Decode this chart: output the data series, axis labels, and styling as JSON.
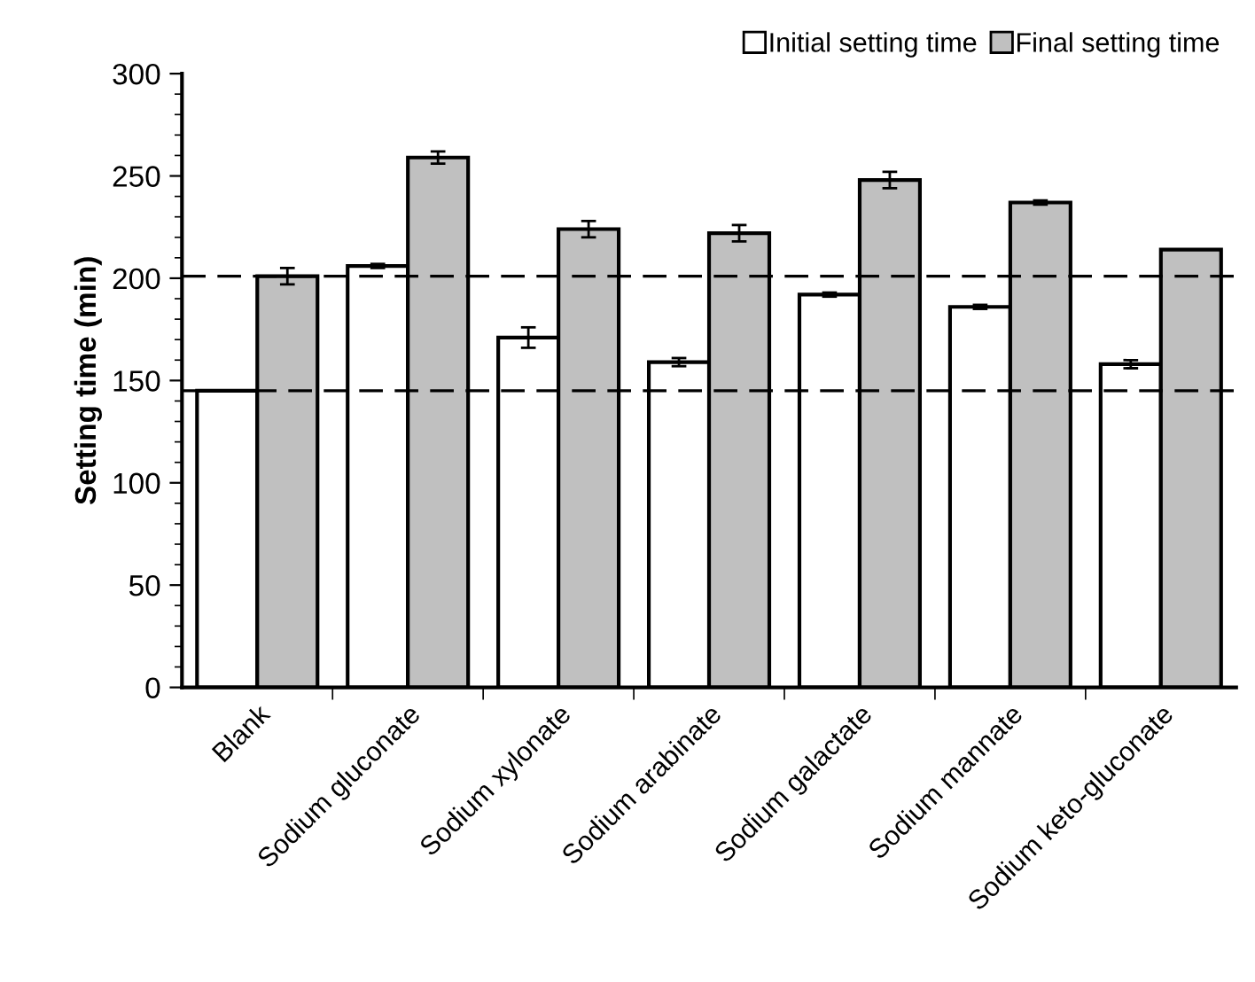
{
  "chart_data": {
    "type": "bar",
    "ylabel": "Setting time (min)",
    "categories": [
      "Blank",
      "Sodium gluconate",
      "Sodium xylonate",
      "Sodium arabinate",
      "Sodium galactate",
      "Sodium mannate",
      "Sodium keto-gluconate"
    ],
    "series": [
      {
        "name": "Initial setting time",
        "color": "#ffffff",
        "values": [
          145,
          206,
          171,
          159,
          192,
          186,
          158
        ],
        "errors": [
          null,
          1,
          5,
          2,
          1,
          1,
          2
        ]
      },
      {
        "name": "Final setting time",
        "color": "#c0c0c0",
        "values": [
          201,
          259,
          224,
          222,
          248,
          237,
          214
        ],
        "errors": [
          4,
          3,
          4,
          4,
          4,
          1,
          null
        ]
      }
    ],
    "ylim": [
      0,
      300
    ],
    "yticks": [
      0,
      50,
      100,
      150,
      200,
      250,
      300
    ],
    "ref_lines": [
      {
        "axis": "y",
        "value": 201,
        "line_style": "dashed"
      },
      {
        "axis": "y",
        "value": 145,
        "line_style": "dashed"
      }
    ],
    "grid": false,
    "legend": "top right"
  }
}
